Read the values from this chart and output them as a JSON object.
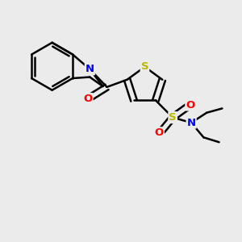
{
  "background_color": "#ebebeb",
  "atom_colors": {
    "C": "#000000",
    "N": "#0000ff",
    "O": "#ff0000",
    "S": "#b8b800",
    "H": "#000000"
  },
  "bond_color": "#000000",
  "figsize": [
    3.0,
    3.0
  ],
  "dpi": 100
}
